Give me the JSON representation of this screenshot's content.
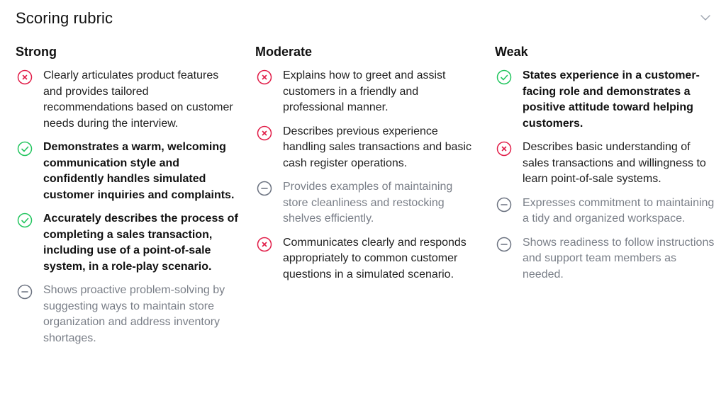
{
  "title": "Scoring rubric",
  "colors": {
    "met": "#22c55e",
    "unmet": "#e11d48",
    "neutral": "#6b7280"
  },
  "columns": [
    {
      "heading": "Strong",
      "items": [
        {
          "status": "unmet",
          "icon": "x-circle-icon",
          "text": "Clearly articulates product features and provides tailored recommendations based on customer needs during the interview."
        },
        {
          "status": "met",
          "icon": "check-circle-icon",
          "text": "Demonstrates a warm, welcoming communication style and confidently handles simulated customer inquiries and complaints."
        },
        {
          "status": "met",
          "icon": "check-circle-icon",
          "text": "Accurately describes the process of completing a sales transaction, including use of a point-of-sale system, in a role-play scenario."
        },
        {
          "status": "neutral",
          "icon": "minus-circle-icon",
          "text": "Shows proactive problem-solving by suggesting ways to maintain store organization and address inventory shortages."
        }
      ]
    },
    {
      "heading": "Moderate",
      "items": [
        {
          "status": "unmet",
          "icon": "x-circle-icon",
          "text": "Explains how to greet and assist customers in a friendly and professional manner."
        },
        {
          "status": "unmet",
          "icon": "x-circle-icon",
          "text": "Describes previous experience handling sales transactions and basic cash register operations."
        },
        {
          "status": "neutral",
          "icon": "minus-circle-icon",
          "text": "Provides examples of maintaining store cleanliness and restocking shelves efficiently."
        },
        {
          "status": "unmet",
          "icon": "x-circle-icon",
          "text": "Communicates clearly and responds appropriately to common customer questions in a simulated scenario."
        }
      ]
    },
    {
      "heading": "Weak",
      "items": [
        {
          "status": "met",
          "icon": "check-circle-icon",
          "text": "States experience in a customer-facing role and demonstrates a positive attitude toward helping customers."
        },
        {
          "status": "unmet",
          "icon": "x-circle-icon",
          "text": "Describes basic understanding of sales transactions and willingness to learn point-of-sale systems."
        },
        {
          "status": "neutral",
          "icon": "minus-circle-icon",
          "text": "Expresses commitment to maintaining a tidy and organized workspace."
        },
        {
          "status": "neutral",
          "icon": "minus-circle-icon",
          "text": "Shows readiness to follow instructions and support team members as needed."
        }
      ]
    }
  ]
}
